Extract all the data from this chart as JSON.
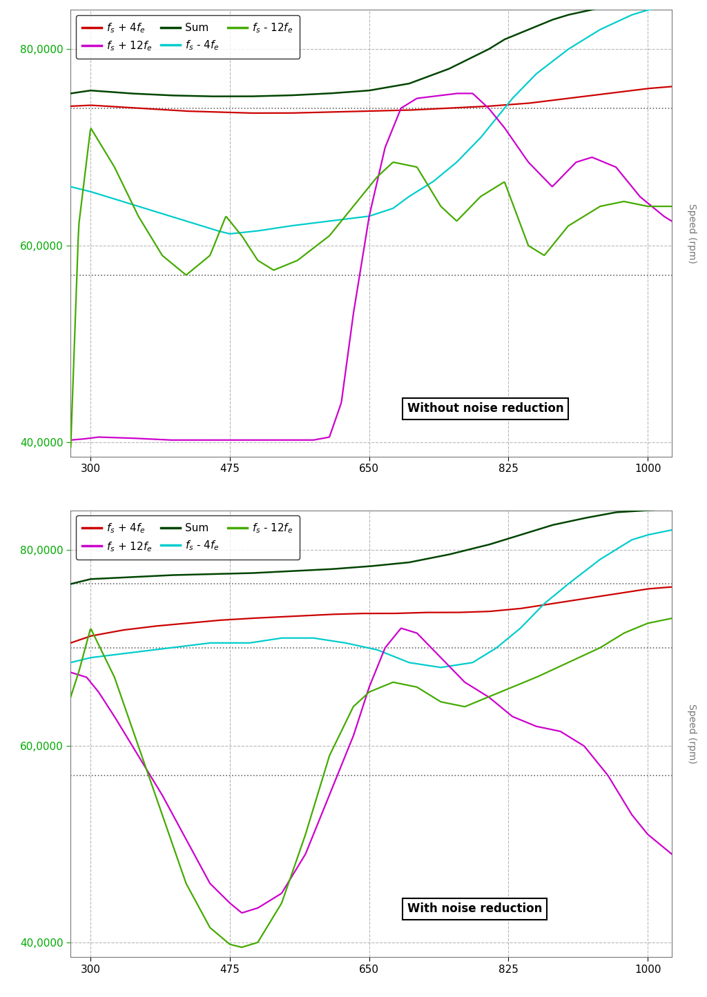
{
  "xlim": [
    275,
    1030
  ],
  "ylim": [
    38500,
    84000
  ],
  "xticks": [
    300,
    475,
    650,
    825,
    1000
  ],
  "yticks": [
    40000,
    60000,
    80000
  ],
  "colors": {
    "fs_plus_4fe": "#cc0000",
    "fs_minus_4fe": "#00cccc",
    "fs_plus_12fe": "#cc00cc",
    "fs_minus_12fe": "#44aa00",
    "sum": "#004400"
  },
  "annotation1": "Without noise reduction",
  "annotation2": "With noise reduction",
  "background_color": "#ffffff",
  "grid_color": "#999999",
  "axis_color": "#888888",
  "tick_color": "#00aa00"
}
